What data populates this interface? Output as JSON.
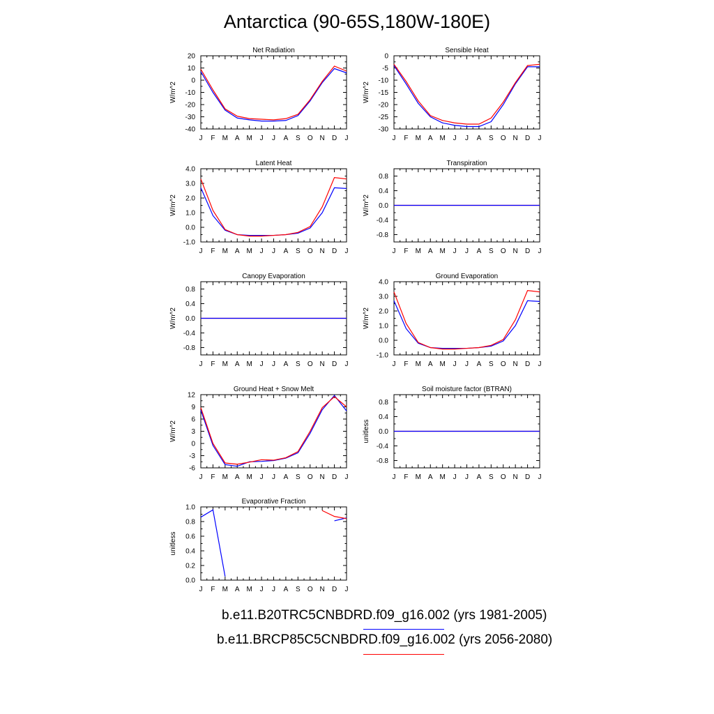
{
  "figure": {
    "title": "Antarctica (90-65S,180W-180E)"
  },
  "legend": [
    {
      "label": "b.e11.B20TRC5CNBDRD.f09_g16.002 (yrs 1981-2005)",
      "color": "#0000ff"
    },
    {
      "label": "b.e11.BRCP85C5CNBDRD.f09_g16.002 (yrs 2056-2080)",
      "color": "#ff0000"
    }
  ],
  "chart_data": [
    {
      "type": "line",
      "title": "Net Radiation",
      "ylabel": "W/m^2",
      "categories": [
        "J",
        "F",
        "M",
        "A",
        "M",
        "J",
        "J",
        "A",
        "S",
        "O",
        "N",
        "D",
        "J"
      ],
      "ylim": [
        -40,
        20
      ],
      "yticks": [
        20,
        10,
        0,
        -10,
        -20,
        -30,
        -40
      ],
      "series": [
        {
          "color": "#0000ff",
          "values": [
            7,
            -10,
            -24.5,
            -31,
            -32.5,
            -33.5,
            -33.5,
            -33,
            -29,
            -17,
            -2,
            9.5,
            6
          ]
        },
        {
          "color": "#ff0000",
          "values": [
            9,
            -8,
            -23.5,
            -29.5,
            -31.5,
            -32,
            -32.5,
            -31.5,
            -28,
            -16,
            -1,
            11.5,
            7.5
          ]
        }
      ]
    },
    {
      "type": "line",
      "title": "Sensible Heat",
      "ylabel": "W/m^2",
      "categories": [
        "J",
        "F",
        "M",
        "A",
        "M",
        "J",
        "J",
        "A",
        "S",
        "O",
        "N",
        "D",
        "J"
      ],
      "ylim": [
        -30,
        0
      ],
      "yticks": [
        0,
        -5,
        -10,
        -15,
        -20,
        -25,
        -30
      ],
      "series": [
        {
          "color": "#0000ff",
          "values": [
            -4,
            -11.5,
            -19.5,
            -25,
            -27.5,
            -28.5,
            -29,
            -29,
            -27,
            -20,
            -11.5,
            -4.5,
            -4.5
          ]
        },
        {
          "color": "#ff0000",
          "values": [
            -3.5,
            -10.5,
            -18.5,
            -24.5,
            -26.5,
            -27.5,
            -28,
            -28,
            -25.5,
            -19,
            -11,
            -4,
            -3.5
          ]
        }
      ]
    },
    {
      "type": "line",
      "title": "Latent Heat",
      "ylabel": "W/m^2",
      "categories": [
        "J",
        "F",
        "M",
        "A",
        "M",
        "J",
        "J",
        "A",
        "S",
        "O",
        "N",
        "D",
        "J"
      ],
      "ylim": [
        -1,
        4
      ],
      "yticks": [
        4.0,
        3.0,
        2.0,
        1.0,
        0.0,
        -1.0
      ],
      "yticklabels": [
        "4.0",
        "3.0",
        "2.0",
        "1.0",
        "0.0",
        "-1.0"
      ],
      "series": [
        {
          "color": "#0000ff",
          "values": [
            2.7,
            0.8,
            -0.2,
            -0.5,
            -0.55,
            -0.55,
            -0.55,
            -0.5,
            -0.4,
            -0.05,
            1.0,
            2.7,
            2.65
          ]
        },
        {
          "color": "#ff0000",
          "values": [
            3.3,
            1.15,
            -0.15,
            -0.5,
            -0.6,
            -0.6,
            -0.55,
            -0.5,
            -0.35,
            0.05,
            1.4,
            3.4,
            3.3
          ]
        }
      ]
    },
    {
      "type": "line",
      "title": "Transpiration",
      "ylabel": "W/m^2",
      "categories": [
        "J",
        "F",
        "M",
        "A",
        "M",
        "J",
        "J",
        "A",
        "S",
        "O",
        "N",
        "D",
        "J"
      ],
      "ylim": [
        -1,
        1
      ],
      "yticks": [
        0.8,
        0.4,
        0.0,
        -0.4,
        -0.8
      ],
      "yticklabels": [
        "0.8",
        "0.4",
        "0.0",
        "-0.4",
        "-0.8"
      ],
      "series": [
        {
          "color": "#ff0000",
          "values": [
            0,
            0,
            0,
            0,
            0,
            0,
            0,
            0,
            0,
            0,
            0,
            0,
            0
          ]
        },
        {
          "color": "#0000ff",
          "values": [
            0,
            0,
            0,
            0,
            0,
            0,
            0,
            0,
            0,
            0,
            0,
            0,
            0
          ]
        }
      ]
    },
    {
      "type": "line",
      "title": "Canopy Evaporation",
      "ylabel": "W/m^2",
      "categories": [
        "J",
        "F",
        "M",
        "A",
        "M",
        "J",
        "J",
        "A",
        "S",
        "O",
        "N",
        "D",
        "J"
      ],
      "ylim": [
        -1,
        1
      ],
      "yticks": [
        0.8,
        0.4,
        0.0,
        -0.4,
        -0.8
      ],
      "yticklabels": [
        "0.8",
        "0.4",
        "0.0",
        "-0.4",
        "-0.8"
      ],
      "series": [
        {
          "color": "#ff0000",
          "values": [
            0,
            0,
            0,
            0,
            0,
            0,
            0,
            0,
            0,
            0,
            0,
            0,
            0
          ]
        },
        {
          "color": "#0000ff",
          "values": [
            0,
            0,
            0,
            0,
            0,
            0,
            0,
            0,
            0,
            0,
            0,
            0,
            0
          ]
        }
      ]
    },
    {
      "type": "line",
      "title": "Ground Evaporation",
      "ylabel": "W/m^2",
      "categories": [
        "J",
        "F",
        "M",
        "A",
        "M",
        "J",
        "J",
        "A",
        "S",
        "O",
        "N",
        "D",
        "J"
      ],
      "ylim": [
        -1,
        4
      ],
      "yticks": [
        4.0,
        3.0,
        2.0,
        1.0,
        0.0,
        -1.0
      ],
      "yticklabels": [
        "4.0",
        "3.0",
        "2.0",
        "1.0",
        "0.0",
        "-1.0"
      ],
      "series": [
        {
          "color": "#0000ff",
          "values": [
            2.7,
            0.8,
            -0.2,
            -0.5,
            -0.55,
            -0.55,
            -0.55,
            -0.5,
            -0.4,
            -0.05,
            1.0,
            2.7,
            2.65
          ]
        },
        {
          "color": "#ff0000",
          "values": [
            3.3,
            1.15,
            -0.15,
            -0.5,
            -0.6,
            -0.6,
            -0.55,
            -0.5,
            -0.35,
            0.05,
            1.4,
            3.4,
            3.3
          ]
        }
      ]
    },
    {
      "type": "line",
      "title": "Ground Heat + Snow Melt",
      "ylabel": "W/m^2",
      "categories": [
        "J",
        "F",
        "M",
        "A",
        "M",
        "J",
        "J",
        "A",
        "S",
        "O",
        "N",
        "D",
        "J"
      ],
      "ylim": [
        -6,
        12
      ],
      "yticks": [
        12,
        9,
        6,
        3,
        0,
        -3,
        -6
      ],
      "series": [
        {
          "color": "#0000ff",
          "values": [
            8.2,
            -0.5,
            -5.2,
            -5.6,
            -4.5,
            -4.4,
            -4.2,
            -3.6,
            -2.3,
            2.5,
            8.3,
            11.8,
            8
          ]
        },
        {
          "color": "#ff0000",
          "values": [
            8.8,
            0,
            -4.8,
            -5.1,
            -4.6,
            -4,
            -4.1,
            -3.5,
            -2,
            3,
            8.8,
            11.5,
            9
          ]
        }
      ]
    },
    {
      "type": "line",
      "title": "Soil moisture factor (BTRAN)",
      "ylabel": "unitless",
      "categories": [
        "J",
        "F",
        "M",
        "A",
        "M",
        "J",
        "J",
        "A",
        "S",
        "O",
        "N",
        "D",
        "J"
      ],
      "ylim": [
        -1,
        1
      ],
      "yticks": [
        0.8,
        0.4,
        0.0,
        -0.4,
        -0.8
      ],
      "yticklabels": [
        "0.8",
        "0.4",
        "0.0",
        "-0.4",
        "-0.8"
      ],
      "series": [
        {
          "color": "#ff0000",
          "values": [
            0,
            0,
            0,
            0,
            0,
            0,
            0,
            0,
            0,
            0,
            0,
            0,
            0
          ]
        },
        {
          "color": "#0000ff",
          "values": [
            0,
            0,
            0,
            0,
            0,
            0,
            0,
            0,
            0,
            0,
            0,
            0,
            0
          ]
        }
      ]
    },
    {
      "type": "line",
      "title": "Evaporative Fraction",
      "ylabel": "unitless",
      "categories": [
        "J",
        "F",
        "M",
        "A",
        "M",
        "J",
        "J",
        "A",
        "S",
        "O",
        "N",
        "D",
        "J"
      ],
      "ylim": [
        0,
        1
      ],
      "yticks": [
        1.0,
        0.8,
        0.6,
        0.4,
        0.2,
        0.0
      ],
      "yticklabels": [
        "1.0",
        "0.8",
        "0.6",
        "0.4",
        "0.2",
        "0.0"
      ],
      "series": [
        {
          "color": "#0000ff",
          "values": [
            0.86,
            0.96,
            0.05,
            null,
            null,
            null,
            null,
            null,
            null,
            null,
            null,
            0.81,
            0.85
          ]
        },
        {
          "color": "#ff0000",
          "values": [
            null,
            null,
            null,
            null,
            null,
            null,
            null,
            null,
            null,
            null,
            0.95,
            0.87,
            0.84
          ]
        }
      ]
    }
  ]
}
